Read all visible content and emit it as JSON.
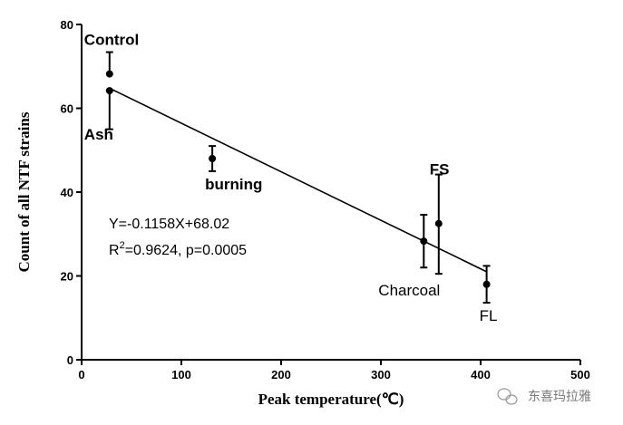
{
  "chart_data": {
    "type": "scatter",
    "title": "",
    "xlabel": "Peak temperature(℃)",
    "ylabel": "Count  of  all NTF strains",
    "xlim": [
      0,
      500
    ],
    "ylim": [
      0,
      80
    ],
    "xticks": [
      "0",
      "100",
      "200",
      "300",
      "400",
      "500"
    ],
    "yticks": [
      "0",
      "20",
      "40",
      "60",
      "80"
    ],
    "grid": false,
    "points": [
      {
        "label": "Control",
        "x": 28,
        "y": 68.2,
        "err_low": 68.2,
        "err_high": 73.4,
        "bold": true
      },
      {
        "label": "Ash",
        "x": 28,
        "y": 64.2,
        "err_low": 55.0,
        "err_high": 64.2,
        "bold": true
      },
      {
        "label": "burning",
        "x": 131,
        "y": 48.0,
        "err_low": 45.0,
        "err_high": 51.0,
        "bold": true
      },
      {
        "label": "Charcoal",
        "x": 343,
        "y": 28.3,
        "err_low": 22.0,
        "err_high": 34.6,
        "bold": false
      },
      {
        "label": "FS",
        "x": 358,
        "y": 32.5,
        "err_low": 20.5,
        "err_high": 44.2,
        "bold": true
      },
      {
        "label": "FL",
        "x": 406,
        "y": 18.0,
        "err_low": 13.6,
        "err_high": 22.4,
        "bold": false
      }
    ],
    "regression": {
      "slope": -0.1158,
      "intercept": 68.02,
      "x_range": [
        28,
        406
      ]
    },
    "annotation": {
      "equation": "Y=-0.1158X+68.02",
      "r2_prefix": "R",
      "r2_sup": "2",
      "r2_rest": "=0.9624, p=0.0005"
    }
  },
  "watermark": "东喜玛拉雅"
}
